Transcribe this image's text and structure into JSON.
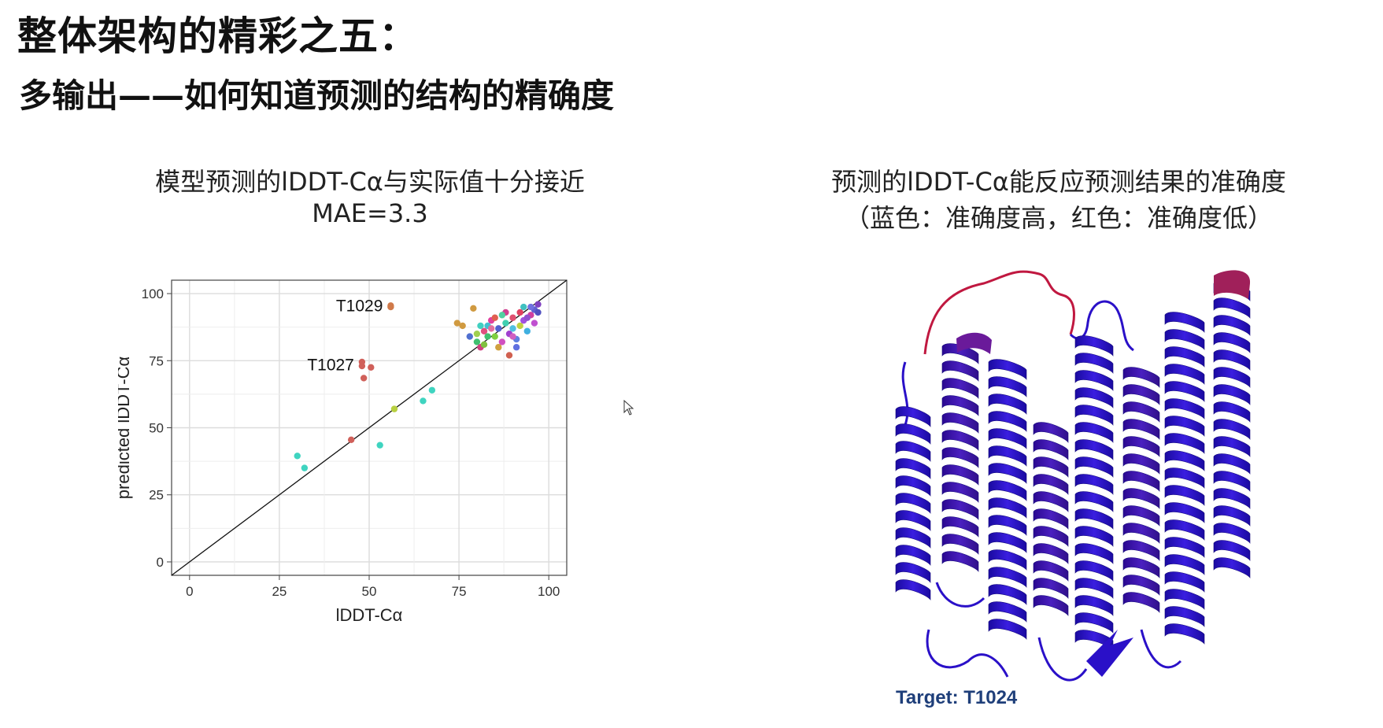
{
  "slide": {
    "title": "整体架构的精彩之五：",
    "subtitle": "多输出——如何知道预测的结构的精确度"
  },
  "left_panel": {
    "caption_line1": "模型预测的lDDT-Cα与实际值十分接近",
    "caption_line2": "MAE=3.3"
  },
  "right_panel": {
    "caption_line1": "预测的lDDT-Cα能反应预测结果的准确度",
    "caption_line2": "（蓝色：准确度高，红色：准确度低）",
    "target_label": "Target: T1024",
    "image_description_icon": "protein-structure-ribbon",
    "colors": {
      "high_accuracy": "#2a10c8",
      "low_accuracy": "#c01840"
    }
  },
  "chart_data": {
    "type": "scatter",
    "xlabel": "lDDT-Cα",
    "ylabel": "predicted lDDT-Cα",
    "xlim": [
      -5,
      105
    ],
    "ylim": [
      -5,
      105
    ],
    "xticks": [
      0,
      25,
      50,
      75,
      100
    ],
    "yticks": [
      0,
      25,
      50,
      75,
      100
    ],
    "grid": true,
    "diagonal_line": true,
    "annotations": [
      {
        "text": "T1029",
        "x": 56,
        "y": 95.5
      },
      {
        "text": "T1027",
        "x": 48,
        "y": 73.5
      }
    ],
    "points": [
      {
        "x": 30,
        "y": 39.5,
        "color": "#3fd4c0"
      },
      {
        "x": 32,
        "y": 35,
        "color": "#3fd4c0"
      },
      {
        "x": 45,
        "y": 45.5,
        "color": "#d0605a"
      },
      {
        "x": 53,
        "y": 43.5,
        "color": "#3fd4c0"
      },
      {
        "x": 57,
        "y": 57,
        "color": "#b8d040"
      },
      {
        "x": 65,
        "y": 60,
        "color": "#3fd4c0"
      },
      {
        "x": 67.5,
        "y": 64,
        "color": "#3fd4c0"
      },
      {
        "x": 48,
        "y": 74.5,
        "color": "#d0605a"
      },
      {
        "x": 48,
        "y": 73,
        "color": "#d0605a"
      },
      {
        "x": 50.5,
        "y": 72.5,
        "color": "#d0605a"
      },
      {
        "x": 48.5,
        "y": 68.5,
        "color": "#d0605a"
      },
      {
        "x": 56,
        "y": 95.5,
        "color": "#d07a4a"
      },
      {
        "x": 56,
        "y": 95,
        "color": "#d07a4a"
      },
      {
        "x": 79,
        "y": 94.5,
        "color": "#d09a40"
      },
      {
        "x": 74.5,
        "y": 89,
        "color": "#d09a40"
      },
      {
        "x": 76,
        "y": 88,
        "color": "#d09a40"
      },
      {
        "x": 78,
        "y": 84,
        "color": "#5070d0"
      },
      {
        "x": 80,
        "y": 82,
        "color": "#40c070"
      },
      {
        "x": 81,
        "y": 80,
        "color": "#d04080"
      },
      {
        "x": 82,
        "y": 86,
        "color": "#e05080"
      },
      {
        "x": 83,
        "y": 88,
        "color": "#40c0d0"
      },
      {
        "x": 84,
        "y": 90,
        "color": "#e040a0"
      },
      {
        "x": 85,
        "y": 84,
        "color": "#80d040"
      },
      {
        "x": 86,
        "y": 87,
        "color": "#5060d0"
      },
      {
        "x": 87,
        "y": 82,
        "color": "#d050c0"
      },
      {
        "x": 88,
        "y": 89,
        "color": "#40d0b0"
      },
      {
        "x": 89,
        "y": 85,
        "color": "#a040d0"
      },
      {
        "x": 90,
        "y": 91,
        "color": "#e05070"
      },
      {
        "x": 91,
        "y": 83,
        "color": "#6080e0"
      },
      {
        "x": 92,
        "y": 88,
        "color": "#c0d040"
      },
      {
        "x": 93,
        "y": 90,
        "color": "#a050e0"
      },
      {
        "x": 94,
        "y": 86,
        "color": "#40b0e0"
      },
      {
        "x": 95,
        "y": 92,
        "color": "#d040a0"
      },
      {
        "x": 96,
        "y": 94,
        "color": "#6060d0"
      },
      {
        "x": 97,
        "y": 96,
        "color": "#8040c0"
      },
      {
        "x": 83,
        "y": 84,
        "color": "#40c070"
      },
      {
        "x": 85,
        "y": 91,
        "color": "#e06050"
      },
      {
        "x": 88,
        "y": 93,
        "color": "#d04090"
      },
      {
        "x": 90,
        "y": 87,
        "color": "#50c0e0"
      },
      {
        "x": 92,
        "y": 93,
        "color": "#e04060"
      },
      {
        "x": 94,
        "y": 91,
        "color": "#9050d0"
      },
      {
        "x": 96,
        "y": 89,
        "color": "#c050d0"
      },
      {
        "x": 82,
        "y": 81,
        "color": "#80c040"
      },
      {
        "x": 86,
        "y": 80,
        "color": "#d0a040"
      },
      {
        "x": 89,
        "y": 77,
        "color": "#d06050"
      },
      {
        "x": 91,
        "y": 80,
        "color": "#6070e0"
      },
      {
        "x": 87,
        "y": 92,
        "color": "#50d0a0"
      },
      {
        "x": 93,
        "y": 95,
        "color": "#40c0c0"
      },
      {
        "x": 95,
        "y": 95,
        "color": "#7070e0"
      },
      {
        "x": 84,
        "y": 87,
        "color": "#e070a0"
      },
      {
        "x": 81,
        "y": 88,
        "color": "#40d0c0"
      },
      {
        "x": 80,
        "y": 85,
        "color": "#a0d050"
      },
      {
        "x": 90,
        "y": 84,
        "color": "#d060c0"
      },
      {
        "x": 97,
        "y": 93,
        "color": "#5050c0"
      }
    ]
  }
}
